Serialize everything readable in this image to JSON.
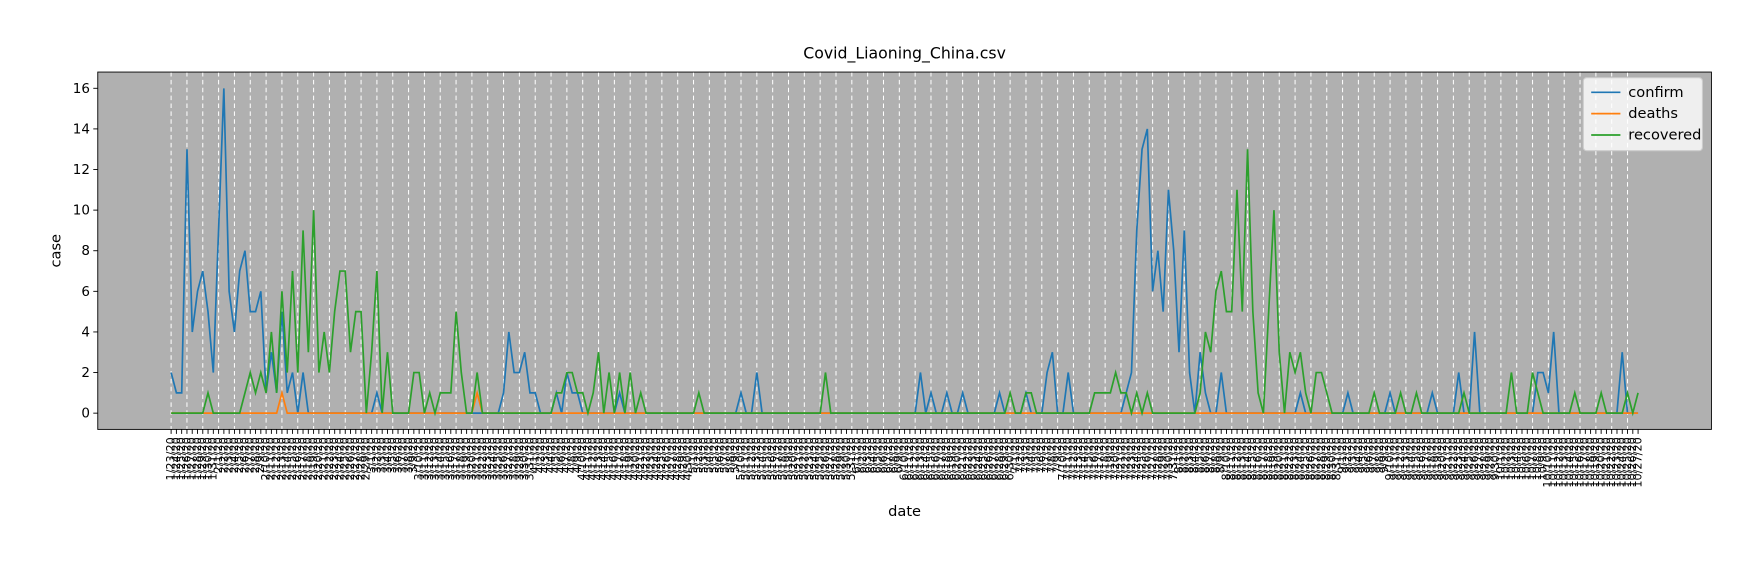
{
  "chart_data": {
    "type": "line",
    "title": "Covid_Liaoning_China.csv",
    "x_label": "date",
    "y_label": "case",
    "categories": [
      "1/23/20",
      "1/24/20",
      "1/25/20",
      "1/26/20",
      "1/27/20",
      "1/28/20",
      "1/29/20",
      "1/30/20",
      "1/31/20",
      "2/1/20",
      "2/2/20",
      "2/3/20",
      "2/4/20",
      "2/5/20",
      "2/6/20",
      "2/7/20",
      "2/8/20",
      "2/9/20",
      "2/10/20",
      "2/11/20",
      "2/12/20",
      "2/13/20",
      "2/14/20",
      "2/15/20",
      "2/16/20",
      "2/17/20",
      "2/18/20",
      "2/19/20",
      "2/20/20",
      "2/21/20",
      "2/22/20",
      "2/23/20",
      "2/24/20",
      "2/25/20",
      "2/26/20",
      "2/27/20",
      "2/28/20",
      "2/29/20",
      "3/1/20",
      "3/2/20",
      "3/3/20",
      "3/4/20",
      "3/5/20",
      "3/6/20",
      "3/7/20",
      "3/8/20",
      "3/9/20",
      "3/10/20",
      "3/11/20",
      "3/12/20",
      "3/13/20",
      "3/14/20",
      "3/15/20",
      "3/16/20",
      "3/17/20",
      "3/18/20",
      "3/19/20",
      "3/20/20",
      "3/21/20",
      "3/22/20",
      "3/23/20",
      "3/24/20",
      "3/25/20",
      "3/26/20",
      "3/27/20",
      "3/28/20",
      "3/29/20",
      "3/30/20",
      "3/31/20",
      "4/1/20",
      "4/2/20",
      "4/3/20",
      "4/4/20",
      "4/5/20",
      "4/6/20",
      "4/7/20",
      "4/8/20",
      "4/9/20",
      "4/10/20",
      "4/11/20",
      "4/12/20",
      "4/13/20",
      "4/14/20",
      "4/15/20",
      "4/16/20",
      "4/17/20",
      "4/18/20",
      "4/19/20",
      "4/20/20",
      "4/21/20",
      "4/22/20",
      "4/23/20",
      "4/24/20",
      "4/25/20",
      "4/26/20",
      "4/27/20",
      "4/28/20",
      "4/29/20",
      "4/30/20",
      "5/1/20",
      "5/2/20",
      "5/3/20",
      "5/4/20",
      "5/5/20",
      "5/6/20",
      "5/7/20",
      "5/8/20",
      "5/9/20",
      "5/10/20",
      "5/11/20",
      "5/12/20",
      "5/13/20",
      "5/14/20",
      "5/15/20",
      "5/16/20",
      "5/17/20",
      "5/18/20",
      "5/19/20",
      "5/20/20",
      "5/21/20",
      "5/22/20",
      "5/23/20",
      "5/24/20",
      "5/25/20",
      "5/26/20",
      "5/27/20",
      "5/28/20",
      "5/29/20",
      "5/30/20",
      "5/31/20",
      "6/1/20",
      "6/2/20",
      "6/3/20",
      "6/4/20",
      "6/5/20",
      "6/6/20",
      "6/7/20",
      "6/8/20",
      "6/9/20",
      "6/10/20",
      "6/11/20",
      "6/12/20",
      "6/13/20",
      "6/14/20",
      "6/15/20",
      "6/16/20",
      "6/17/20",
      "6/18/20",
      "6/19/20",
      "6/20/20",
      "6/21/20",
      "6/22/20",
      "6/23/20",
      "6/24/20",
      "6/25/20",
      "6/26/20",
      "6/27/20",
      "6/28/20",
      "6/29/20",
      "6/30/20",
      "7/1/20",
      "7/2/20",
      "7/3/20",
      "7/4/20",
      "7/5/20",
      "7/6/20",
      "7/7/20",
      "7/8/20",
      "7/9/20",
      "7/10/20",
      "7/11/20",
      "7/12/20",
      "7/13/20",
      "7/14/20",
      "7/15/20",
      "7/16/20",
      "7/17/20",
      "7/18/20",
      "7/19/20",
      "7/20/20",
      "7/21/20",
      "7/22/20",
      "7/23/20",
      "7/24/20",
      "7/25/20",
      "7/26/20",
      "7/27/20",
      "7/28/20",
      "7/29/20",
      "7/30/20",
      "7/31/20",
      "8/1/20",
      "8/2/20",
      "8/3/20",
      "8/4/20",
      "8/5/20",
      "8/6/20",
      "8/7/20",
      "8/8/20",
      "8/9/20",
      "8/10/20",
      "8/11/20",
      "8/12/20",
      "8/13/20",
      "8/14/20",
      "8/15/20",
      "8/16/20",
      "8/17/20",
      "8/18/20",
      "8/19/20",
      "8/20/20",
      "8/21/20",
      "8/22/20",
      "8/23/20",
      "8/24/20",
      "8/25/20",
      "8/26/20",
      "8/27/20",
      "8/28/20",
      "8/29/20",
      "8/30/20",
      "8/31/20",
      "9/1/20",
      "9/2/20",
      "9/3/20",
      "9/4/20",
      "9/5/20",
      "9/6/20",
      "9/7/20",
      "9/8/20",
      "9/9/20",
      "9/10/20",
      "9/11/20",
      "9/12/20",
      "9/13/20",
      "9/14/20",
      "9/15/20",
      "9/16/20",
      "9/17/20",
      "9/18/20",
      "9/19/20",
      "9/20/20",
      "9/21/20",
      "9/22/20",
      "9/23/20",
      "9/24/20",
      "9/25/20",
      "9/26/20",
      "9/27/20",
      "9/28/20",
      "9/29/20",
      "9/30/20",
      "10/1/20",
      "10/2/20",
      "10/3/20",
      "10/4/20",
      "10/5/20",
      "10/6/20",
      "10/7/20",
      "10/8/20",
      "10/9/20",
      "10/10/20",
      "10/11/20",
      "10/12/20",
      "10/13/20",
      "10/14/20",
      "10/15/20",
      "10/16/20",
      "10/17/20",
      "10/18/20",
      "10/19/20",
      "10/20/20",
      "10/21/20",
      "10/22/20",
      "10/23/20",
      "10/24/20",
      "10/25/20",
      "10/26/20",
      "10/27/20"
    ],
    "series": [
      {
        "name": "confirm",
        "color": "#1f77b4",
        "values": [
          2,
          1,
          1,
          13,
          4,
          6,
          7,
          5,
          2,
          9,
          16,
          6,
          4,
          7,
          8,
          5,
          5,
          6,
          1,
          3,
          1,
          5,
          1,
          2,
          0,
          2,
          0,
          0,
          0,
          0,
          0,
          0,
          0,
          0,
          0,
          0,
          0,
          0,
          0,
          1,
          0,
          0,
          0,
          0,
          0,
          0,
          0,
          0,
          0,
          0,
          0,
          0,
          0,
          0,
          0,
          0,
          0,
          0,
          0,
          0,
          0,
          0,
          0,
          1,
          4,
          2,
          2,
          3,
          1,
          1,
          0,
          0,
          0,
          1,
          0,
          2,
          1,
          1,
          0,
          0,
          0,
          0,
          0,
          0,
          0,
          1,
          0,
          0,
          0,
          0,
          0,
          0,
          0,
          0,
          0,
          0,
          0,
          0,
          0,
          0,
          0,
          0,
          0,
          0,
          0,
          0,
          0,
          0,
          1,
          0,
          0,
          2,
          0,
          0,
          0,
          0,
          0,
          0,
          0,
          0,
          0,
          0,
          0,
          0,
          0,
          0,
          0,
          0,
          0,
          0,
          0,
          0,
          0,
          0,
          0,
          0,
          0,
          0,
          0,
          0,
          0,
          0,
          2,
          0,
          1,
          0,
          0,
          1,
          0,
          0,
          1,
          0,
          0,
          0,
          0,
          0,
          0,
          1,
          0,
          0,
          0,
          0,
          1,
          0,
          0,
          0,
          2,
          3,
          0,
          0,
          2,
          0,
          0,
          0,
          0,
          0,
          0,
          0,
          0,
          0,
          0,
          1,
          2,
          9,
          13,
          14,
          6,
          8,
          5,
          11,
          8,
          3,
          9,
          2,
          0,
          3,
          1,
          0,
          0,
          2,
          0,
          0,
          0,
          0,
          0,
          0,
          0,
          0,
          0,
          0,
          0,
          0,
          0,
          0,
          1,
          0,
          0,
          0,
          0,
          0,
          0,
          0,
          0,
          1,
          0,
          0,
          0,
          0,
          0,
          0,
          0,
          1,
          0,
          0,
          0,
          0,
          0,
          0,
          0,
          1,
          0,
          0,
          0,
          0,
          2,
          0,
          0,
          4,
          0,
          0,
          0,
          0,
          0,
          0,
          0,
          0,
          0,
          0,
          0,
          2,
          2,
          1,
          4,
          0,
          0,
          0,
          0,
          0,
          0,
          0,
          0,
          0,
          0,
          0,
          0,
          3,
          0,
          0,
          0
        ]
      },
      {
        "name": "deaths",
        "color": "#ff7f0e",
        "values": [
          0,
          0,
          0,
          0,
          0,
          0,
          0,
          0,
          0,
          0,
          0,
          0,
          0,
          0,
          0,
          0,
          0,
          0,
          0,
          0,
          0,
          1,
          0,
          0,
          0,
          0,
          0,
          0,
          0,
          0,
          0,
          0,
          0,
          0,
          0,
          0,
          0,
          0,
          0,
          0,
          0,
          0,
          0,
          0,
          0,
          0,
          0,
          0,
          0,
          0,
          0,
          0,
          0,
          0,
          0,
          0,
          0,
          0,
          1,
          0,
          0,
          0,
          0,
          0,
          0,
          0,
          0,
          0,
          0,
          0,
          0,
          0,
          0,
          0,
          0,
          0,
          0,
          0,
          0,
          0,
          0,
          0,
          0,
          0,
          0,
          0,
          0,
          0,
          0,
          0,
          0,
          0,
          0,
          0,
          0,
          0,
          0,
          0,
          0,
          0,
          0,
          0,
          0,
          0,
          0,
          0,
          0,
          0,
          0,
          0,
          0,
          0,
          0,
          0,
          0,
          0,
          0,
          0,
          0,
          0,
          0,
          0,
          0,
          0,
          0,
          0,
          0,
          0,
          0,
          0,
          0,
          0,
          0,
          0,
          0,
          0,
          0,
          0,
          0,
          0,
          0,
          0,
          0,
          0,
          0,
          0,
          0,
          0,
          0,
          0,
          0,
          0,
          0,
          0,
          0,
          0,
          0,
          0,
          0,
          0,
          0,
          0,
          0,
          0,
          0,
          0,
          0,
          0,
          0,
          0,
          0,
          0,
          0,
          0,
          0,
          0,
          0,
          0,
          0,
          0,
          0,
          0,
          0,
          0,
          0,
          0,
          0,
          0,
          0,
          0,
          0,
          0,
          0,
          0,
          0,
          0,
          0,
          0,
          0,
          0,
          0,
          0,
          0,
          0,
          0,
          0,
          0,
          0,
          0,
          0,
          0,
          0,
          0,
          0,
          0,
          0,
          0,
          0,
          0,
          0,
          0,
          0,
          0,
          0,
          0,
          0,
          0,
          0,
          0,
          0,
          0,
          0,
          0,
          0,
          0,
          0,
          0,
          0,
          0,
          0,
          0,
          0,
          0,
          0,
          0,
          0,
          0,
          0,
          0,
          0,
          0,
          0,
          0,
          0,
          0,
          0,
          0,
          0,
          0,
          0,
          0,
          0,
          0,
          0,
          0,
          0,
          0,
          0,
          0,
          0,
          0,
          0,
          0,
          0,
          0,
          0,
          0,
          0,
          0
        ]
      },
      {
        "name": "recovered",
        "color": "#2ca02c",
        "values": [
          0,
          0,
          0,
          0,
          0,
          0,
          0,
          1,
          0,
          0,
          0,
          0,
          0,
          0,
          1,
          2,
          1,
          2,
          1,
          4,
          1,
          6,
          2,
          7,
          2,
          9,
          3,
          10,
          2,
          4,
          2,
          5,
          7,
          7,
          3,
          5,
          5,
          0,
          3,
          7,
          0,
          3,
          0,
          0,
          0,
          0,
          2,
          2,
          0,
          1,
          0,
          1,
          1,
          1,
          5,
          2,
          0,
          0,
          2,
          0,
          0,
          0,
          0,
          0,
          0,
          0,
          0,
          0,
          0,
          0,
          0,
          0,
          0,
          1,
          1,
          2,
          2,
          1,
          1,
          0,
          1,
          3,
          0,
          2,
          0,
          2,
          0,
          2,
          0,
          1,
          0,
          0,
          0,
          0,
          0,
          0,
          0,
          0,
          0,
          0,
          1,
          0,
          0,
          0,
          0,
          0,
          0,
          0,
          0,
          0,
          0,
          0,
          0,
          0,
          0,
          0,
          0,
          0,
          0,
          0,
          0,
          0,
          0,
          0,
          2,
          0,
          0,
          0,
          0,
          0,
          0,
          0,
          0,
          0,
          0,
          0,
          0,
          0,
          0,
          0,
          0,
          0,
          0,
          0,
          0,
          0,
          0,
          0,
          0,
          0,
          0,
          0,
          0,
          0,
          0,
          0,
          0,
          0,
          0,
          1,
          0,
          0,
          1,
          1,
          0,
          0,
          0,
          0,
          0,
          0,
          0,
          0,
          0,
          0,
          0,
          1,
          1,
          1,
          1,
          2,
          1,
          1,
          0,
          1,
          0,
          1,
          0,
          0,
          0,
          0,
          0,
          0,
          0,
          0,
          0,
          1,
          4,
          3,
          6,
          7,
          5,
          5,
          11,
          5,
          13,
          5,
          1,
          0,
          5,
          10,
          3,
          0,
          3,
          2,
          3,
          1,
          0,
          2,
          2,
          1,
          0,
          0,
          0,
          0,
          0,
          0,
          0,
          0,
          1,
          0,
          0,
          0,
          0,
          1,
          0,
          0,
          1,
          0,
          0,
          0,
          0,
          0,
          0,
          0,
          0,
          1,
          0,
          0,
          0,
          0,
          0,
          0,
          0,
          0,
          2,
          0,
          0,
          0,
          2,
          1,
          0,
          0,
          0,
          0,
          0,
          0,
          1,
          0,
          0,
          0,
          0,
          1,
          0,
          0,
          0,
          0,
          1,
          0,
          1
        ]
      }
    ],
    "ylim": [
      -0.8,
      16.8
    ],
    "yticks": [
      0,
      2,
      4,
      6,
      8,
      10,
      12,
      14,
      16
    ],
    "grid": true,
    "background": "#b0b0b0",
    "legend": "upper right"
  }
}
